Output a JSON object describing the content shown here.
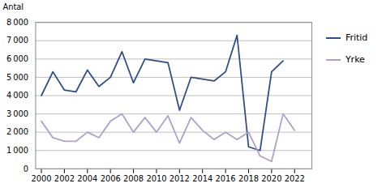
{
  "chart_data": {
    "type": "line",
    "ylabel": "Antal",
    "x": [
      2000,
      2001,
      2002,
      2003,
      2004,
      2005,
      2006,
      2007,
      2008,
      2009,
      2010,
      2011,
      2012,
      2013,
      2014,
      2015,
      2016,
      2017,
      2018,
      2019,
      2020,
      2021,
      2022
    ],
    "series": [
      {
        "name": "Fritid",
        "color": "#2E4C8B",
        "values": [
          4000,
          5300,
          4300,
          4200,
          5400,
          4500,
          5000,
          6400,
          4700,
          6000,
          5900,
          5800,
          3200,
          5000,
          4900,
          4800,
          5300,
          7300,
          1200,
          1000,
          5300,
          5900,
          null
        ]
      },
      {
        "name": "Yrke",
        "color": "#B09FCA",
        "values": [
          2600,
          1700,
          1500,
          1500,
          2000,
          1700,
          2600,
          3000,
          2000,
          2800,
          2000,
          2900,
          1400,
          2800,
          2100,
          1600,
          2000,
          1600,
          2000,
          700,
          400,
          3000,
          2100
        ]
      }
    ],
    "xlim": [
      1999.5,
      2023.5
    ],
    "xticks": [
      2000,
      2002,
      2004,
      2006,
      2008,
      2010,
      2012,
      2014,
      2016,
      2018,
      2020,
      2022
    ],
    "ylim": [
      0,
      8000
    ],
    "yticks": [
      0,
      {
        "value": 1000,
        "label": "1 000"
      },
      {
        "value": 2000,
        "label": "2 000"
      },
      {
        "value": 3000,
        "label": "3 000"
      },
      {
        "value": 4000,
        "label": "4 000"
      },
      {
        "value": 5000,
        "label": "5 000"
      },
      {
        "value": 6000,
        "label": "6 000"
      },
      {
        "value": 7000,
        "label": "7 000"
      },
      {
        "value": 8000,
        "label": "8 000"
      }
    ],
    "grid": true,
    "legend": "right"
  }
}
